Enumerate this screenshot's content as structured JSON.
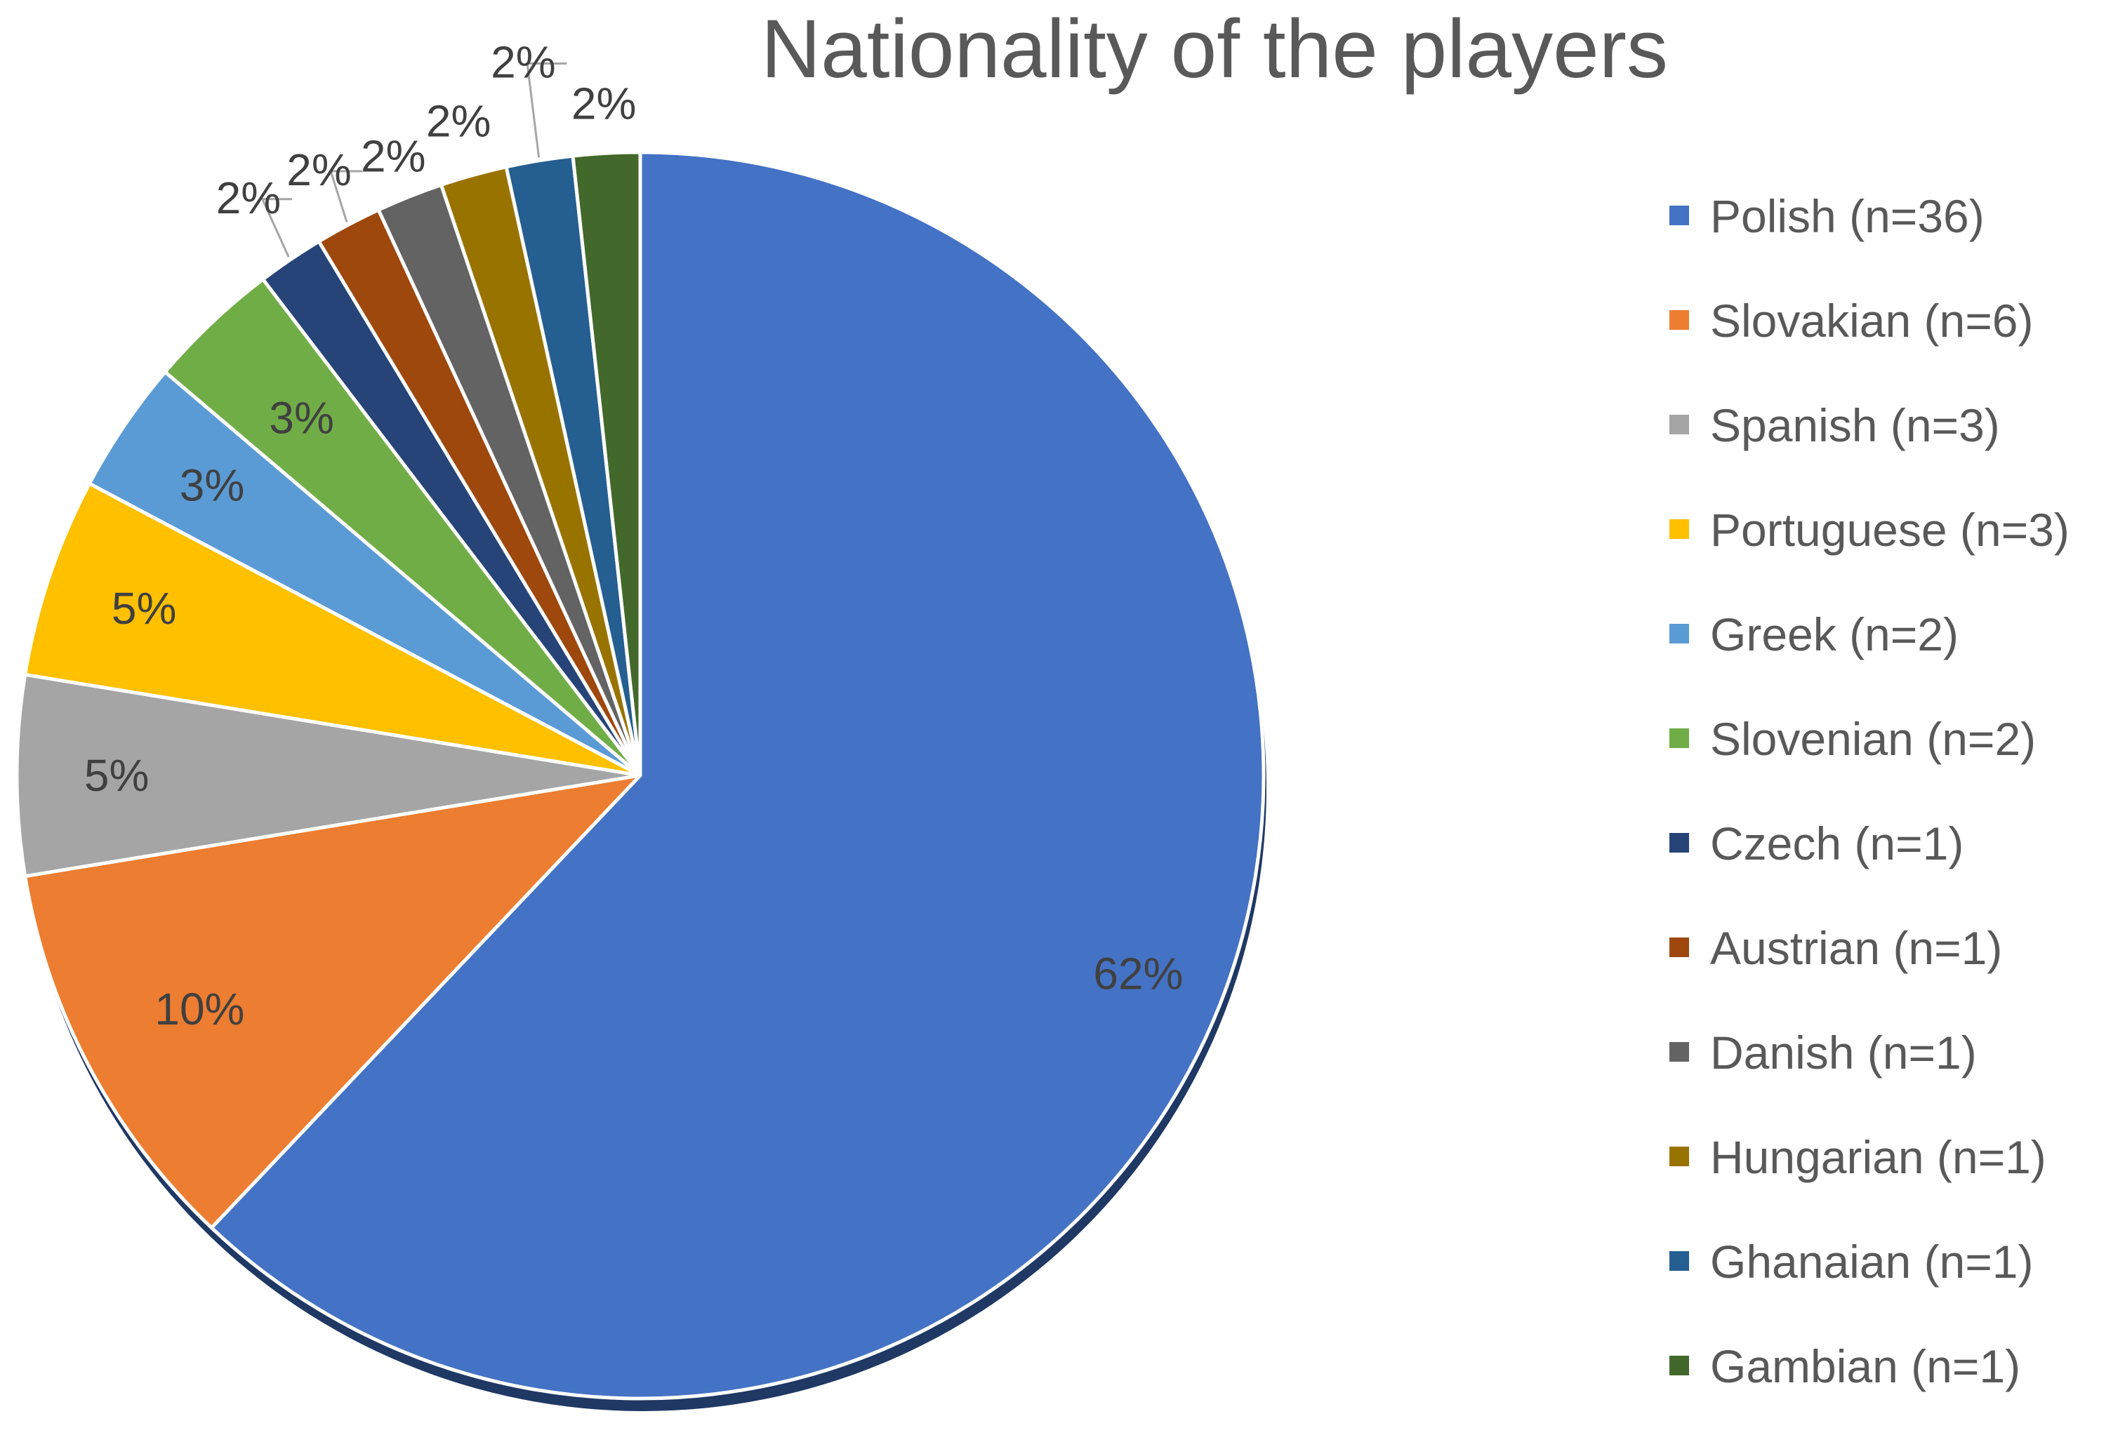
{
  "chart_data": {
    "type": "pie",
    "title": "Nationality of the players",
    "categories": [
      "Polish (n=36)",
      "Slovakian (n=6)",
      "Spanish (n=3)",
      "Portuguese (n=3)",
      "Greek (n=2)",
      "Slovenian (n=2)",
      "Czech (n=1)",
      "Austrian (n=1)",
      "Danish (n=1)",
      "Hungarian (n=1)",
      "Ghanaian (n=1)",
      "Gambian (n=1)"
    ],
    "values": [
      36,
      6,
      3,
      3,
      2,
      2,
      1,
      1,
      1,
      1,
      1,
      1
    ],
    "data_labels": [
      "62%",
      "10%",
      "5%",
      "5%",
      "3%",
      "3%",
      "2%",
      "2%",
      "2%",
      "2%",
      "2%",
      "2%"
    ],
    "colors": [
      "#4472C4",
      "#ED7D31",
      "#A5A5A5",
      "#FFC000",
      "#5B9BD5",
      "#70AD47",
      "#264478",
      "#9E480E",
      "#636363",
      "#997300",
      "#255E91",
      "#43682B"
    ],
    "start_angle_deg": 0,
    "direction": "clockwise",
    "legend_position": "right"
  }
}
